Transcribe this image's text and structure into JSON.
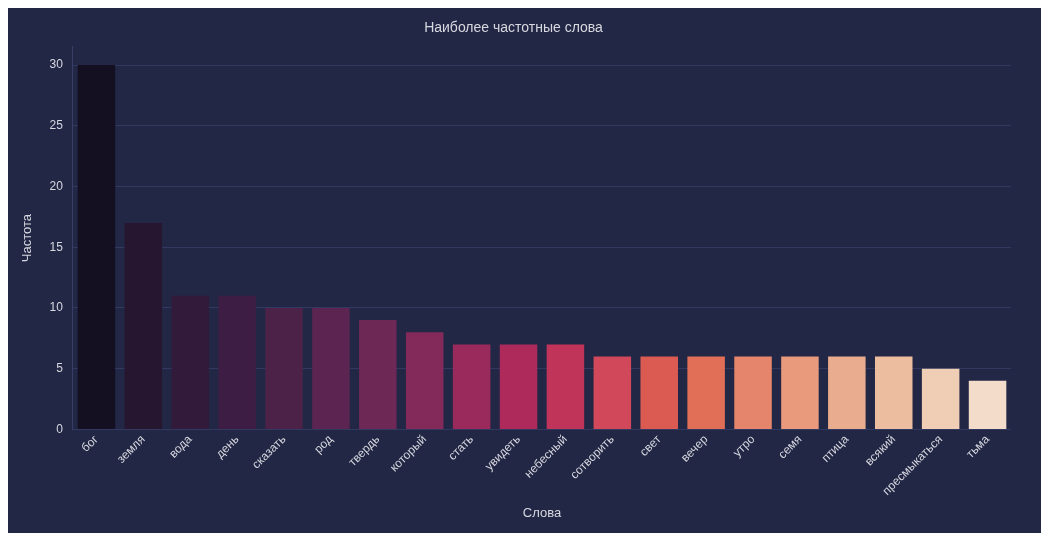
{
  "chart_data": {
    "type": "bar",
    "title": "Наиболее частотные слова",
    "xlabel": "Слова",
    "ylabel": "Частота",
    "categories": [
      "бог",
      "земля",
      "вода",
      "день",
      "сказать",
      "род",
      "твердь",
      "который",
      "стать",
      "увидеть",
      "небесный",
      "сотворить",
      "свет",
      "вечер",
      "утро",
      "семя",
      "птица",
      "всякий",
      "пресмыкаться",
      "тьма"
    ],
    "values": [
      30,
      17,
      11,
      11,
      10,
      10,
      9,
      8,
      7,
      7,
      7,
      6,
      6,
      6,
      6,
      6,
      6,
      6,
      5,
      4
    ],
    "colors": [
      "#150f22",
      "#271630",
      "#321a3a",
      "#3d1d44",
      "#4c2249",
      "#5c2551",
      "#6e2856",
      "#842a5a",
      "#9a2a5c",
      "#ae2a5b",
      "#c1345a",
      "#d0485a",
      "#db5b53",
      "#e16f57",
      "#e5856b",
      "#e99a7c",
      "#eaac8e",
      "#edbd9f",
      "#f0cdb5",
      "#f4dccb"
    ],
    "ylim": [
      0,
      31.5
    ],
    "yticks": [
      0,
      5,
      10,
      15,
      20,
      25,
      30
    ],
    "grid": "y"
  }
}
